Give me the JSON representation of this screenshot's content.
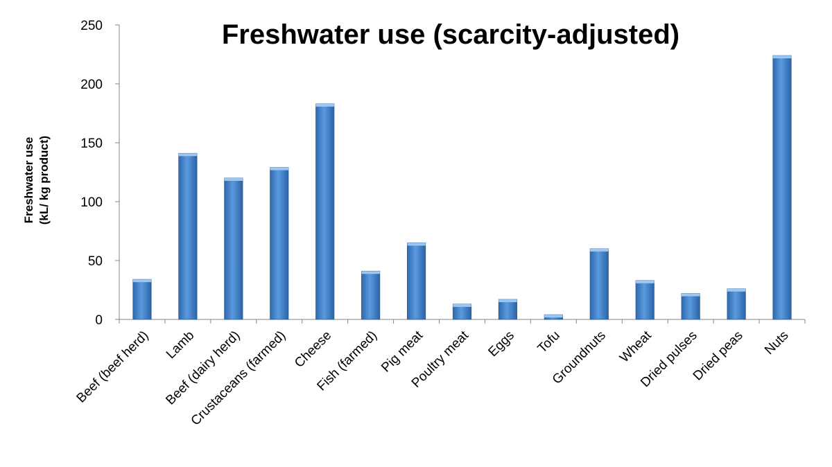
{
  "chart_data": {
    "type": "bar",
    "title": "Freshwater use (scarcity-adjusted)",
    "ylabel_lines": [
      "Freshwater use",
      "(kL/ kg product)"
    ],
    "xlabel": "",
    "ylim": [
      0,
      250
    ],
    "yticks": [
      0,
      50,
      100,
      150,
      200,
      250
    ],
    "grid": false,
    "categories": [
      "Beef (beef herd)",
      "Lamb",
      "Beef (dairy herd)",
      "Crustaceans (farmed)",
      "Cheese",
      "Fish (farmed)",
      "Pig meat",
      "Poultry meat",
      "Eggs",
      "Tofu",
      "Groundnuts",
      "Wheat",
      "Dried pulses",
      "Dried peas",
      "Nuts"
    ],
    "values": [
      34,
      141,
      120,
      129,
      183,
      41,
      65,
      13,
      17,
      4,
      60,
      33,
      22,
      26,
      224
    ],
    "bar_color": "#4a86c8"
  }
}
